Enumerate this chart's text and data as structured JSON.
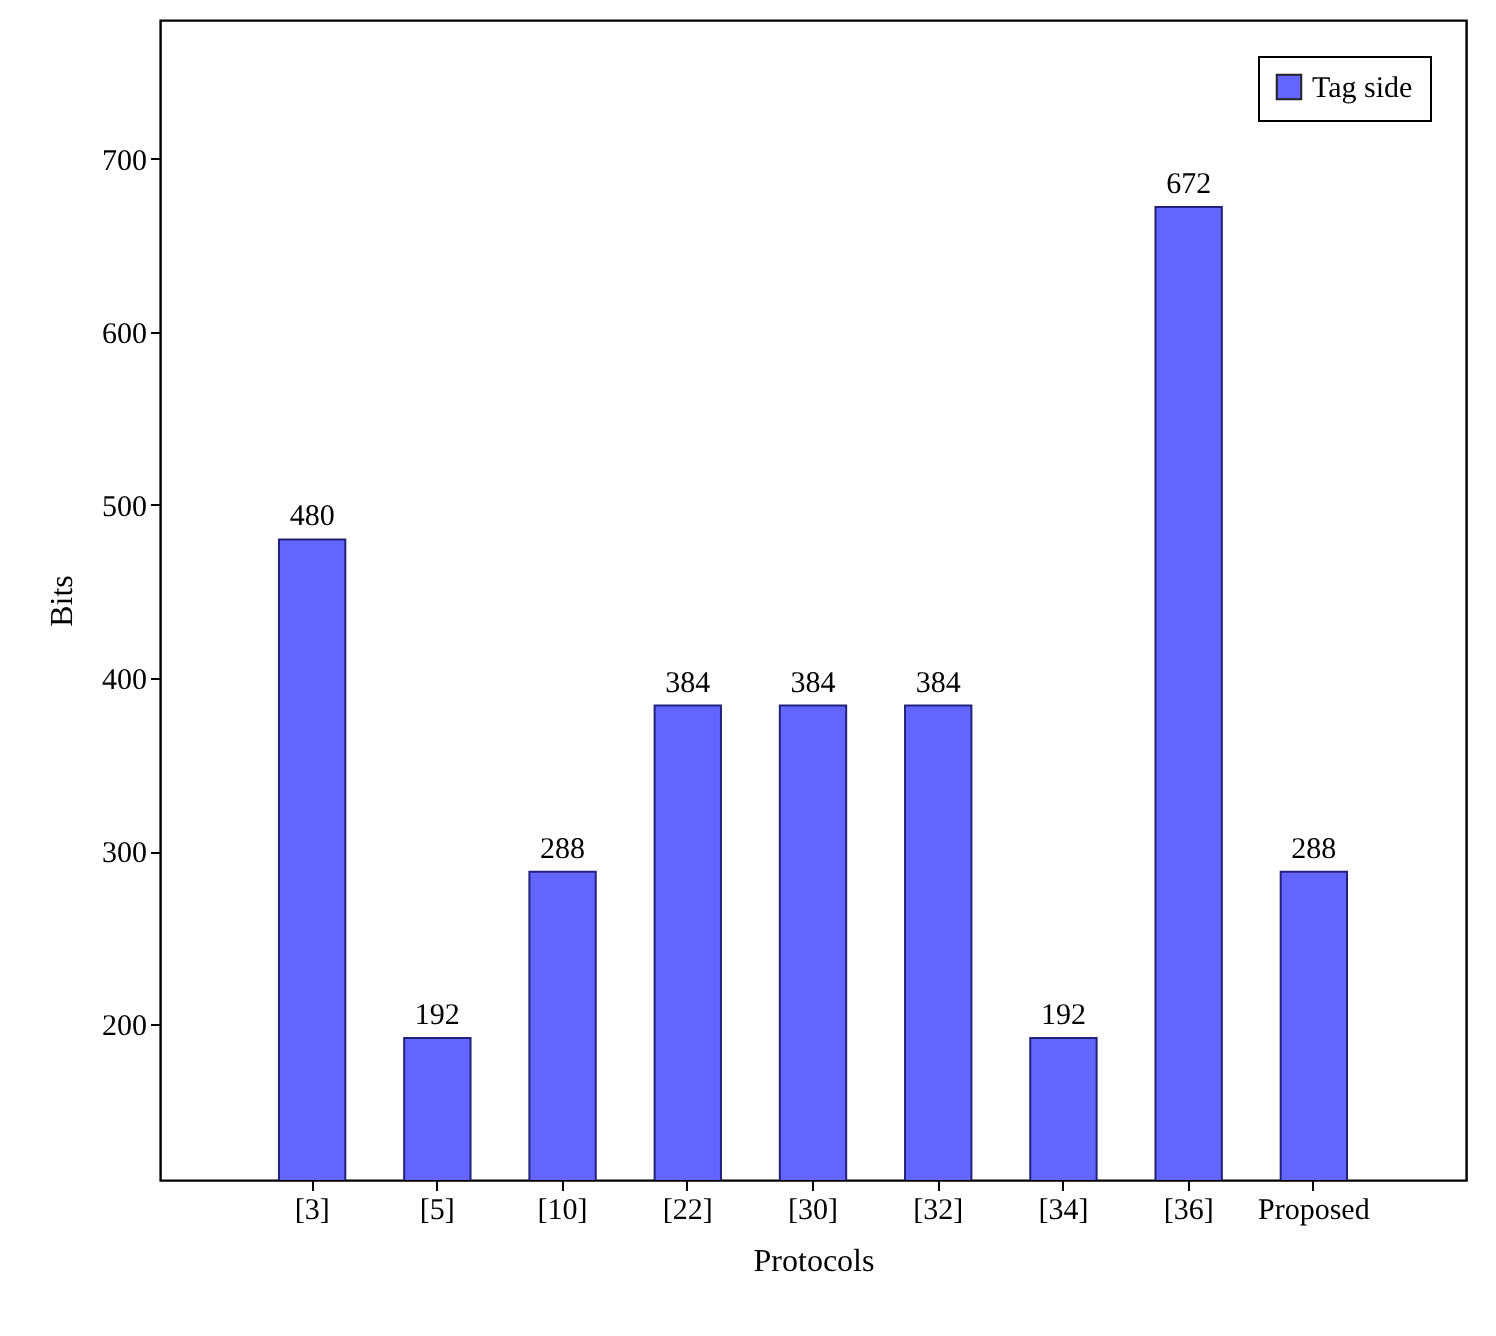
{
  "chart_data": {
    "type": "bar",
    "xlabel": "Protocols",
    "ylabel": "Bits",
    "categories": [
      "[3]",
      "[5]",
      "[10]",
      "[22]",
      "[30]",
      "[32]",
      "[34]",
      "[36]",
      "Proposed"
    ],
    "series": [
      {
        "name": "Tag side",
        "color": "#6464ff",
        "values": [
          480,
          192,
          288,
          384,
          384,
          384,
          192,
          672,
          288
        ]
      }
    ],
    "ylim": [
      110,
      780
    ],
    "yticks": [
      200,
      300,
      400,
      500,
      600,
      700
    ],
    "grid": false,
    "legend": "top right",
    "data_labels": true
  }
}
